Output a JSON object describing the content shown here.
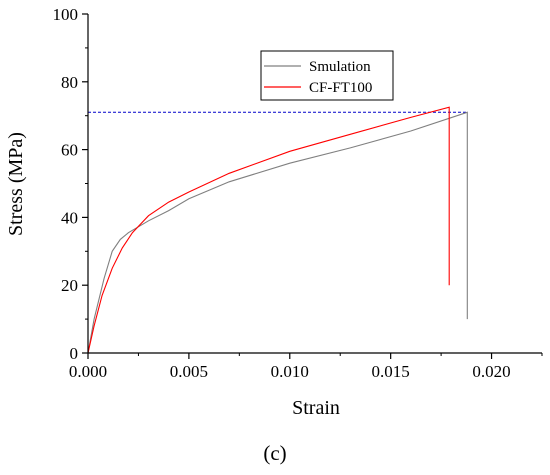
{
  "chart_data": {
    "type": "line",
    "xlabel": "Strain",
    "ylabel": "Stress (MPa)",
    "xlim": [
      0,
      0.0225
    ],
    "ylim": [
      0,
      100
    ],
    "x_ticks": [
      "0.000",
      "0.005",
      "0.010",
      "0.015",
      "0.020"
    ],
    "x_tick_values": [
      0,
      0.005,
      0.01,
      0.015,
      0.02
    ],
    "y_ticks": [
      "0",
      "20",
      "40",
      "60",
      "80",
      "100"
    ],
    "y_tick_values": [
      0,
      20,
      40,
      60,
      80,
      100
    ],
    "grid": false,
    "legend_position": "top-right",
    "series": [
      {
        "name": "Smulation",
        "color": "#808080",
        "x": [
          0,
          0.0003,
          0.0008,
          0.0012,
          0.0016,
          0.002,
          0.003,
          0.004,
          0.005,
          0.007,
          0.01,
          0.013,
          0.016,
          0.0188,
          0.0188
        ],
        "y": [
          0,
          10,
          22,
          30,
          33.5,
          35.5,
          39,
          42,
          45.5,
          50.5,
          56,
          60.5,
          65.5,
          71,
          10
        ]
      },
      {
        "name": "CF-FT100",
        "color": "#ff0000",
        "x": [
          0,
          0.0003,
          0.0007,
          0.0012,
          0.0017,
          0.0022,
          0.003,
          0.004,
          0.005,
          0.007,
          0.01,
          0.013,
          0.016,
          0.0179,
          0.0179
        ],
        "y": [
          0,
          8,
          17,
          25,
          31,
          35.5,
          40.5,
          44.5,
          47.5,
          53,
          59.5,
          64.5,
          69.5,
          72.5,
          20
        ]
      }
    ],
    "reference_line": {
      "y": 71,
      "color": "#0000cc",
      "style": "dashed"
    }
  },
  "caption": "(c)"
}
